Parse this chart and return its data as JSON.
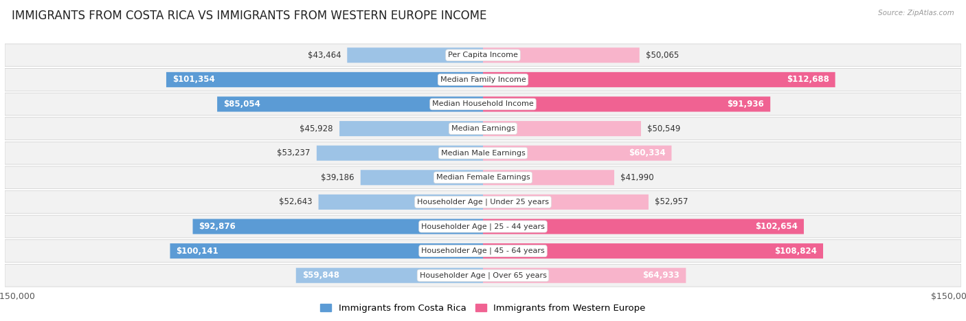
{
  "title": "IMMIGRANTS FROM COSTA RICA VS IMMIGRANTS FROM WESTERN EUROPE INCOME",
  "source": "Source: ZipAtlas.com",
  "categories": [
    "Per Capita Income",
    "Median Family Income",
    "Median Household Income",
    "Median Earnings",
    "Median Male Earnings",
    "Median Female Earnings",
    "Householder Age | Under 25 years",
    "Householder Age | 25 - 44 years",
    "Householder Age | 45 - 64 years",
    "Householder Age | Over 65 years"
  ],
  "costa_rica_values": [
    43464,
    101354,
    85054,
    45928,
    53237,
    39186,
    52643,
    92876,
    100141,
    59848
  ],
  "western_europe_values": [
    50065,
    112688,
    91936,
    50549,
    60334,
    41990,
    52957,
    102654,
    108824,
    64933
  ],
  "costa_rica_labels": [
    "$43,464",
    "$101,354",
    "$85,054",
    "$45,928",
    "$53,237",
    "$39,186",
    "$52,643",
    "$92,876",
    "$100,141",
    "$59,848"
  ],
  "western_europe_labels": [
    "$50,065",
    "$112,688",
    "$91,936",
    "$50,549",
    "$60,334",
    "$41,990",
    "$52,957",
    "$102,654",
    "$108,824",
    "$64,933"
  ],
  "costa_rica_color_dark": "#5b9bd5",
  "costa_rica_color_light": "#9dc3e6",
  "western_europe_color_dark": "#f06292",
  "western_europe_color_light": "#f8b4cb",
  "bar_height": 0.62,
  "max_val": 150000,
  "background_color": "#ffffff",
  "row_bg_color": "#efefef",
  "row_card_color": "#f7f7f7",
  "title_fontsize": 12,
  "label_fontsize": 8.5,
  "category_fontsize": 8,
  "legend_fontsize": 9.5,
  "axis_fontsize": 9,
  "inside_label_threshold": 55000,
  "legend_label_cr": "Immigrants from Costa Rica",
  "legend_label_we": "Immigrants from Western Europe"
}
